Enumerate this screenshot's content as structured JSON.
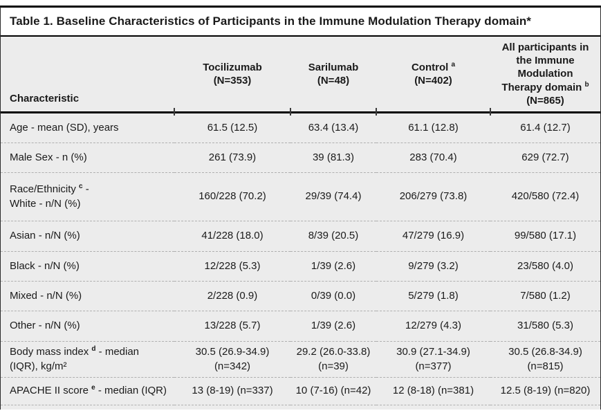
{
  "title": "Table 1. Baseline Characteristics of Participants in the Immune Modulation Therapy domain*",
  "colors": {
    "table_background": "#ececec",
    "rule": "#000000",
    "dashed_separator": "#afafaf",
    "text": "#1a1a1a"
  },
  "table": {
    "corner_header": "Characteristic",
    "columns": [
      {
        "pre": "Tocilizumab\n(N=353)",
        "sup": "",
        "post": ""
      },
      {
        "pre": "Sarilumab\n(N=48)",
        "sup": "",
        "post": ""
      },
      {
        "pre": "Control ",
        "sup": "a",
        "post": "\n(N=402)"
      },
      {
        "pre": "All participants in\nthe Immune\nModulation\nTherapy domain ",
        "sup": "b",
        "post": "\n(N=865)"
      }
    ],
    "rows": [
      {
        "label": {
          "pre": "Age - mean (SD), years",
          "sup": "",
          "post": ""
        },
        "values": [
          "61.5 (12.5)",
          "63.4 (13.4)",
          "61.1 (12.8)",
          "61.4 (12.7)"
        ]
      },
      {
        "label": {
          "pre": "Male Sex - n (%)",
          "sup": "",
          "post": ""
        },
        "values": [
          "261 (73.9)",
          "39 (81.3)",
          "283 (70.4)",
          "629 (72.7)"
        ]
      },
      {
        "label": {
          "pre": "Race/Ethnicity ",
          "sup": "c",
          "post": " -\nWhite - n/N (%)"
        },
        "values": [
          "160/228 (70.2)",
          "29/39 (74.4)",
          "206/279 (73.8)",
          "420/580 (72.4)"
        ]
      },
      {
        "label": {
          "pre": "Asian - n/N (%)",
          "sup": "",
          "post": ""
        },
        "values": [
          "41/228 (18.0)",
          "8/39 (20.5)",
          "47/279 (16.9)",
          "99/580 (17.1)"
        ]
      },
      {
        "label": {
          "pre": "Black - n/N (%)",
          "sup": "",
          "post": ""
        },
        "values": [
          "12/228 (5.3)",
          "1/39 (2.6)",
          "9/279 (3.2)",
          "23/580 (4.0)"
        ]
      },
      {
        "label": {
          "pre": "Mixed - n/N (%)",
          "sup": "",
          "post": ""
        },
        "values": [
          "2/228 (0.9)",
          "0/39 (0.0)",
          "5/279 (1.8)",
          "7/580 (1.2)"
        ]
      },
      {
        "label": {
          "pre": "Other - n/N (%)",
          "sup": "",
          "post": ""
        },
        "values": [
          "13/228 (5.7)",
          "1/39 (2.6)",
          "12/279 (4.3)",
          "31/580 (5.3)"
        ]
      },
      {
        "label": {
          "pre": "Body mass index ",
          "sup": "d",
          "post": " - median\n(IQR), kg/m²"
        },
        "values": [
          "30.5 (26.9-34.9)\n(n=342)",
          "29.2 (26.0-33.8)\n(n=39)",
          "30.9 (27.1-34.9)\n(n=377)",
          "30.5 (26.8-34.9)\n(n=815)"
        ]
      },
      {
        "label": {
          "pre": "APACHE II score ",
          "sup": "e",
          "post": " - median (IQR)"
        },
        "values": [
          "13 (8-19) (n=337)",
          "10 (7-16) (n=42)",
          "12 (8-18) (n=381)",
          "12.5 (8-19) (n=820)"
        ]
      }
    ]
  }
}
